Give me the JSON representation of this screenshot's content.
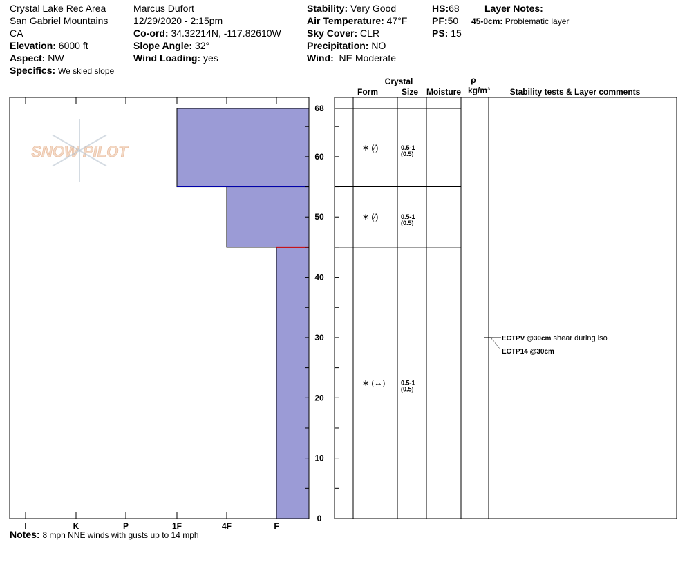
{
  "header": {
    "location": "Crystal Lake Rec Area",
    "range": "San Gabriel Mountains",
    "state": "CA",
    "elevation_label": "Elevation:",
    "elevation": "6000 ft",
    "aspect_label": "Aspect:",
    "aspect": "NW",
    "specifics_label": "Specifics:",
    "specifics": "We skied slope",
    "observer": "Marcus Dufort",
    "datetime": "12/29/2020 - 2:15pm",
    "coord_label": "Co-ord:",
    "coord": "34.32214N, -117.82610W",
    "slope_label": "Slope Angle:",
    "slope": "32°",
    "wind_loading_label": "Wind Loading:",
    "wind_loading": "yes",
    "stability_label": "Stability:",
    "stability": "Very Good",
    "air_temp_label": "Air Temperature:",
    "air_temp": "47°F",
    "sky_label": "Sky Cover:",
    "sky": "CLR",
    "precip_label": "Precipitation:",
    "precip": "NO",
    "wind_label": "Wind:",
    "wind": "NE Moderate",
    "hs_label": "HS:",
    "hs": "68",
    "pf_label": "PF:",
    "pf": "50",
    "ps_label": "PS:",
    "ps": "15",
    "layer_notes_label": "Layer Notes:",
    "layer_note_range": "45-0cm:",
    "layer_note": "Problematic layer"
  },
  "logo_text": "SNOW PILOT",
  "notes_label": "Notes:",
  "notes": "8 mph NNE winds with gusts up to 14 mph",
  "table_headers": {
    "crystal": "Crystal",
    "form": "Form",
    "size": "Size",
    "moisture": "Moisture",
    "rho": "ρ",
    "density": "kg/m³",
    "comments": "Stability tests & Layer comments"
  },
  "chart_data": {
    "type": "bar",
    "hardness_categories": [
      "I",
      "K",
      "P",
      "1F",
      "4F",
      "F"
    ],
    "y_ticks": [
      0,
      10,
      20,
      30,
      40,
      50,
      60,
      68
    ],
    "ylim": [
      0,
      68
    ],
    "fill_color": "#9b9bd6",
    "weak_layer_color": "#cc0000",
    "layers": [
      {
        "top": 68,
        "bottom": 55,
        "hardness": "1F",
        "form": "∗ (⁄)",
        "size": "0.5-1",
        "size2": "(0.5)"
      },
      {
        "top": 55,
        "bottom": 45,
        "hardness": "4F",
        "form": "∗ (⁄)",
        "size": "0.5-1",
        "size2": "(0.5)"
      },
      {
        "top": 45,
        "bottom": 0,
        "hardness": "F",
        "form": "∗ (↔)",
        "size": "0.5-1",
        "size2": "(0.5)"
      }
    ],
    "weak_layer_depth": 45,
    "tests": [
      {
        "depth": 30,
        "label": "ECTPV @30cm",
        "comment": "shear during iso"
      },
      {
        "depth": 30,
        "label": "ECTP14 @30cm",
        "comment": ""
      }
    ]
  }
}
